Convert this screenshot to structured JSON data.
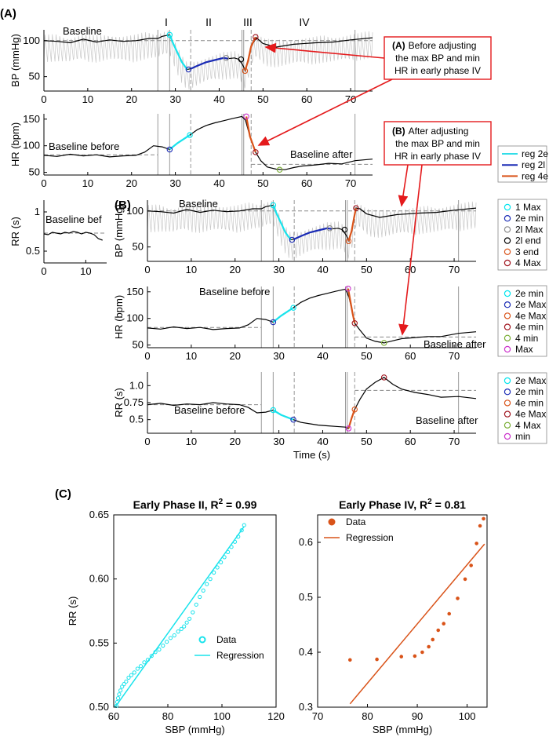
{
  "panel_labels": {
    "a": "(A)",
    "b": "(B)",
    "c": "(C)"
  },
  "phases": {
    "i": "I",
    "ii": "II",
    "iii": "III",
    "iv": "IV"
  },
  "callouts": {
    "a": {
      "key": "(A)",
      "l1": "Before adjusting",
      "l2": "the max BP and min",
      "l3": "HR in early phase IV"
    },
    "b": {
      "key": "(B)",
      "l1": "After adjusting",
      "l2": "the max BP and min",
      "l3": "HR in early phase IV"
    }
  },
  "legends": {
    "reg": [
      "reg 2e",
      "reg 2l",
      "reg 4e"
    ],
    "bp": [
      "1 Max",
      "2e min",
      "2l Max",
      "2l end",
      "3 end",
      "4 Max"
    ],
    "hr": [
      "2e min",
      "2e Max",
      "4e Max",
      "4e min",
      "4 min",
      "Max"
    ],
    "rr": [
      "2e Max",
      "2e min",
      "4e min",
      "4e Max",
      "4 Max",
      "min"
    ]
  },
  "legend_colors": {
    "reg": [
      "#33dde8",
      "#1a2bb5",
      "#d95319"
    ],
    "bp": [
      "#00e5ee",
      "#1a2bb5",
      "#8c8c8c",
      "#000000",
      "#d95319",
      "#a0141e"
    ],
    "hr": [
      "#00e5ee",
      "#1a2bb5",
      "#d95319",
      "#a0141e",
      "#77ac30",
      "#cc33cc"
    ],
    "rr": [
      "#00e5ee",
      "#1a2bb5",
      "#d95319",
      "#a0141e",
      "#77ac30",
      "#cc33cc"
    ]
  },
  "colors": {
    "cyan": "#19e3ec",
    "blue": "#1a2bb5",
    "orange": "#d95319",
    "gray_trace": "#c8c8c8"
  },
  "time_ticks": [
    "0",
    "10",
    "20",
    "30",
    "40",
    "50",
    "60",
    "70"
  ],
  "a_top": {
    "ylabel": "BP (mmHg)",
    "yticks": [
      "50",
      "100"
    ],
    "annotation": "Baseline"
  },
  "a_mid": {
    "ylabel": "HR (bpm)",
    "yticks": [
      "50",
      "100",
      "150"
    ],
    "annotation_left": "Baseline before",
    "annotation_right": "Baseline after"
  },
  "a_small": {
    "ylabel": "RR (s)",
    "yticks": [
      "0.5",
      "1"
    ],
    "xticks": [
      "0",
      "10"
    ],
    "annotation": "Baseline bef"
  },
  "b_top": {
    "ylabel": "BP (mmHg)",
    "yticks": [
      "50",
      "100"
    ],
    "annotation": "Baseline"
  },
  "b_mid": {
    "ylabel": "HR (bpm)",
    "yticks": [
      "50",
      "100",
      "150"
    ],
    "annotation_left": "Baseline before",
    "annotation_right": "Baseline after"
  },
  "b_bot": {
    "ylabel": "RR (s)",
    "yticks": [
      "0.5",
      "0.75",
      "1.0"
    ],
    "xlabel": "Time (s)",
    "annotation_left": "Baseline before",
    "annotation_right": "Baseline after"
  },
  "c_left": {
    "title_main": "Early Phase II, R",
    "title_sup": "2",
    "title_end": " = 0.99",
    "xlabel": "SBP (mmHg)",
    "ylabel": "RR (s)",
    "xticks": [
      "60",
      "80",
      "100",
      "120"
    ],
    "yticks": [
      "0.50",
      "0.55",
      "0.60",
      "0.65"
    ],
    "legend": [
      "Data",
      "Regression"
    ]
  },
  "c_right": {
    "title_main": "Early Phase IV, R",
    "title_sup": "2",
    "title_end": " = 0.81",
    "xlabel": "SBP (mmHg)",
    "xticks": [
      "70",
      "80",
      "90",
      "100"
    ],
    "yticks": [
      "0.3",
      "0.4",
      "0.5",
      "0.6"
    ],
    "legend": [
      "Data",
      "Regression"
    ]
  },
  "chart_data": [
    {
      "type": "line",
      "panel": "A-BP",
      "ylabel": "BP (mmHg)",
      "xlim": [
        0,
        75
      ],
      "ylim": [
        30,
        115
      ],
      "vlines_solid": [
        26,
        28.7,
        45.2,
        45.6,
        71
      ],
      "vlines_dashed": [
        33.5,
        47.3
      ],
      "baseline": 100,
      "x": [
        0,
        3,
        6,
        9,
        12,
        15,
        18,
        21,
        24,
        26,
        27,
        28.7,
        29.5,
        30.5,
        31.5,
        32.7,
        33.5,
        35,
        37,
        39,
        41,
        42,
        43.5,
        44.5,
        45.4,
        46,
        46.6,
        47.3,
        48.5,
        50,
        53,
        57,
        62,
        66,
        70,
        75
      ],
      "y": [
        100,
        99,
        97,
        102,
        98,
        101,
        99,
        100,
        103,
        103,
        106,
        108,
        96,
        83,
        70,
        60,
        61,
        65,
        70,
        73,
        76,
        75,
        76,
        74,
        66,
        58,
        72,
        92,
        104,
        96,
        91,
        95,
        97,
        98,
        101,
        104
      ],
      "segments": [
        {
          "name": "reg 2e",
          "x": [
            28.7,
            29.5,
            30.5,
            31.5,
            32.7
          ],
          "y": [
            108,
            96,
            83,
            70,
            60
          ]
        },
        {
          "name": "reg 2l",
          "x": [
            33.5,
            35,
            37,
            39,
            41,
            42
          ],
          "y": [
            61,
            65,
            70,
            73,
            76,
            75
          ]
        },
        {
          "name": "reg 4e",
          "x": [
            45.9,
            46.6,
            47.3,
            48.3
          ],
          "y": [
            58,
            72,
            92,
            105
          ]
        }
      ],
      "markers": [
        {
          "label": "1 Max",
          "x": 28.7,
          "y": 108
        },
        {
          "label": "2e min",
          "x": 33.0,
          "y": 60
        },
        {
          "label": "2l Max",
          "x": 41.6,
          "y": 76
        },
        {
          "label": "2l end",
          "x": 45.0,
          "y": 74
        },
        {
          "label": "3 end",
          "x": 45.9,
          "y": 58
        },
        {
          "label": "4 Max",
          "x": 48.3,
          "y": 105
        }
      ]
    },
    {
      "type": "line",
      "panel": "A-HR",
      "ylabel": "HR (bpm)",
      "xlim": [
        0,
        75
      ],
      "ylim": [
        45,
        160
      ],
      "vlines_solid": [
        26,
        28.7,
        45.2,
        45.6,
        71
      ],
      "vlines_dashed": [
        33.5,
        47.3
      ],
      "baseline_before": 83,
      "baseline_after": 65,
      "x": [
        0,
        3,
        6,
        9,
        12,
        15,
        18,
        21,
        23,
        25,
        27,
        28.7,
        30.5,
        33.3,
        35,
        37,
        39,
        41,
        43,
        45.2,
        46,
        47,
        48.3,
        49.5,
        51,
        53,
        55,
        57,
        59,
        62,
        65,
        68,
        71,
        75
      ],
      "y": [
        82,
        80,
        84,
        81,
        83,
        79,
        81,
        82,
        88,
        100,
        98,
        93,
        105,
        120,
        130,
        138,
        143,
        147,
        151,
        155,
        148,
        118,
        88,
        72,
        60,
        56,
        55,
        59,
        62,
        64,
        67,
        66,
        72,
        75
      ],
      "segments": [
        {
          "name": "reg 2e",
          "x": [
            28.7,
            30.5,
            33.3
          ],
          "y": [
            93,
            105,
            120
          ]
        },
        {
          "name": "reg 4e",
          "x": [
            46.2,
            47,
            48.3
          ],
          "y": [
            155,
            118,
            88
          ]
        }
      ],
      "markers": [
        {
          "label": "2e min",
          "x": 28.7,
          "y": 93
        },
        {
          "label": "2e Max",
          "x": 33.3,
          "y": 120
        },
        {
          "label": "Max",
          "x": 46.2,
          "y": 155
        },
        {
          "label": "4e min",
          "x": 48.3,
          "y": 88
        },
        {
          "label": "4 min",
          "x": 53.8,
          "y": 55
        }
      ]
    },
    {
      "type": "line",
      "panel": "A-RR",
      "ylabel": "RR (s)",
      "xlim": [
        0,
        15
      ],
      "ylim": [
        0.35,
        1.15
      ],
      "baseline": 0.73,
      "x": [
        0,
        1,
        2,
        3,
        4,
        5,
        6,
        7,
        8,
        9,
        10,
        11,
        12,
        13,
        14
      ],
      "y": [
        0.72,
        0.71,
        0.74,
        0.73,
        0.72,
        0.74,
        0.73,
        0.75,
        0.74,
        0.72,
        0.74,
        0.73,
        0.71,
        0.66,
        0.64
      ]
    },
    {
      "type": "line",
      "panel": "B-BP",
      "ylabel": "BP (mmHg)",
      "xlim": [
        0,
        75
      ],
      "ylim": [
        30,
        115
      ],
      "vlines_solid": [
        26,
        28.7,
        45.2,
        45.6,
        71
      ],
      "vlines_dashed": [
        33.5,
        47.3
      ],
      "baseline": 100,
      "x": [
        0,
        3,
        6,
        9,
        12,
        15,
        18,
        21,
        24,
        26,
        27,
        28.7,
        29.5,
        30.5,
        31.5,
        32.7,
        33.5,
        35,
        37,
        39,
        41,
        42,
        43.5,
        44.5,
        45.4,
        46,
        46.6,
        47.2,
        47.6,
        48.5,
        50,
        53,
        57,
        62,
        66,
        70,
        75
      ],
      "y": [
        100,
        99,
        97,
        102,
        98,
        101,
        99,
        100,
        103,
        103,
        106,
        108,
        96,
        83,
        70,
        60,
        61,
        65,
        70,
        73,
        76,
        75,
        76,
        74,
        66,
        58,
        72,
        92,
        104,
        103,
        96,
        91,
        95,
        97,
        98,
        101,
        104
      ],
      "segments": [
        {
          "name": "reg 2e",
          "x": [
            28.7,
            29.5,
            30.5,
            31.5,
            32.7
          ],
          "y": [
            108,
            96,
            83,
            70,
            60
          ]
        },
        {
          "name": "reg 2l",
          "x": [
            33.5,
            35,
            37,
            39,
            41,
            42
          ],
          "y": [
            61,
            65,
            70,
            73,
            76,
            75
          ]
        },
        {
          "name": "reg 4e",
          "x": [
            45.9,
            46.6,
            47.2,
            47.6
          ],
          "y": [
            58,
            72,
            92,
            104
          ]
        }
      ],
      "markers": [
        {
          "label": "1 Max",
          "x": 28.7,
          "y": 108
        },
        {
          "label": "2e min",
          "x": 33.0,
          "y": 60
        },
        {
          "label": "2l Max",
          "x": 41.6,
          "y": 76
        },
        {
          "label": "2l end",
          "x": 45.0,
          "y": 74
        },
        {
          "label": "3 end",
          "x": 45.9,
          "y": 58
        },
        {
          "label": "4 Max",
          "x": 47.6,
          "y": 104
        }
      ]
    },
    {
      "type": "line",
      "panel": "B-HR",
      "ylabel": "HR (bpm)",
      "xlim": [
        0,
        75
      ],
      "ylim": [
        45,
        160
      ],
      "vlines_solid": [
        26,
        28.7,
        45.2,
        45.6,
        71
      ],
      "vlines_dashed": [
        33.5,
        47.3
      ],
      "baseline_before": 83,
      "baseline_after": 65,
      "x": [
        0,
        3,
        6,
        9,
        12,
        15,
        18,
        21,
        23,
        25,
        27,
        28.7,
        30.5,
        33.3,
        35,
        37,
        39,
        41,
        43,
        45.2,
        46,
        46.8,
        47.3,
        48.5,
        50,
        52,
        54,
        56,
        58,
        61,
        64,
        67,
        71,
        75
      ],
      "y": [
        82,
        80,
        84,
        81,
        83,
        79,
        81,
        82,
        88,
        100,
        98,
        93,
        105,
        120,
        130,
        138,
        143,
        147,
        151,
        155,
        140,
        110,
        91,
        78,
        63,
        57,
        54,
        58,
        62,
        64,
        66,
        66,
        72,
        75
      ],
      "segments": [
        {
          "name": "reg 2e",
          "x": [
            28.7,
            30.5,
            33.3
          ],
          "y": [
            93,
            105,
            120
          ]
        },
        {
          "name": "reg 4e",
          "x": [
            45.8,
            46.8,
            47.3
          ],
          "y": [
            156,
            110,
            91
          ]
        }
      ],
      "markers": [
        {
          "label": "2e min",
          "x": 28.7,
          "y": 93
        },
        {
          "label": "2e Max",
          "x": 33.3,
          "y": 120
        },
        {
          "label": "Max",
          "x": 45.8,
          "y": 156
        },
        {
          "label": "4e min",
          "x": 47.3,
          "y": 91
        },
        {
          "label": "4 min",
          "x": 54,
          "y": 54
        }
      ]
    },
    {
      "type": "line",
      "panel": "B-RR",
      "ylabel": "RR (s)",
      "xlabel": "Time (s)",
      "xlim": [
        0,
        75
      ],
      "ylim": [
        0.3,
        1.2
      ],
      "vlines_solid": [
        26,
        28.7,
        45.2,
        45.6,
        71
      ],
      "vlines_dashed": [
        33.5,
        47.3
      ],
      "baseline_before": 0.72,
      "baseline_after": 0.93,
      "x": [
        0,
        3,
        6,
        9,
        12,
        15,
        18,
        21,
        23,
        25,
        27,
        28.7,
        30.5,
        33.3,
        35,
        37,
        39,
        41,
        43,
        45.2,
        45.9,
        46.6,
        47.3,
        48.5,
        50,
        52,
        54,
        56,
        58,
        61,
        64,
        67,
        71,
        75
      ],
      "y": [
        0.72,
        0.74,
        0.71,
        0.73,
        0.72,
        0.75,
        0.73,
        0.72,
        0.68,
        0.6,
        0.61,
        0.64,
        0.57,
        0.5,
        0.46,
        0.44,
        0.42,
        0.41,
        0.4,
        0.39,
        0.37,
        0.52,
        0.65,
        0.8,
        0.95,
        1.05,
        1.12,
        1.02,
        0.95,
        0.9,
        0.87,
        0.83,
        0.84,
        0.81
      ],
      "segments": [
        {
          "name": "reg 2e",
          "x": [
            28.7,
            30.5,
            33.3
          ],
          "y": [
            0.64,
            0.57,
            0.5
          ]
        },
        {
          "name": "reg 4e",
          "x": [
            45.9,
            46.6,
            47.3
          ],
          "y": [
            0.37,
            0.52,
            0.65
          ]
        }
      ],
      "markers": [
        {
          "label": "2e Max",
          "x": 28.7,
          "y": 0.64
        },
        {
          "label": "2e min",
          "x": 33.3,
          "y": 0.5
        },
        {
          "label": "min",
          "x": 45.9,
          "y": 0.37
        },
        {
          "label": "4e Max",
          "x": 47.3,
          "y": 0.65
        },
        {
          "label": "4 Max",
          "x": 54,
          "y": 1.12
        }
      ]
    },
    {
      "type": "scatter",
      "panel": "C-left",
      "title": "Early Phase II, R2 = 0.99",
      "xlabel": "SBP (mmHg)",
      "ylabel": "RR (s)",
      "xlim": [
        60,
        120
      ],
      "ylim": [
        0.5,
        0.65
      ],
      "series": [
        {
          "name": "Data",
          "x": [
            61.0,
            61.3,
            61.6,
            62.0,
            62.5,
            63.1,
            63.8,
            64.6,
            65.5,
            66.5,
            67.6,
            68.8,
            70.0,
            71.3,
            72.6,
            74.0,
            75.4,
            76.8,
            78.2,
            79.6,
            81.0,
            82.4,
            83.8,
            85.0,
            86.0,
            87.0,
            88.0,
            89.2,
            90.5,
            91.8,
            93.1,
            94.4,
            95.7,
            97.0,
            98.3,
            99.6,
            100.9,
            102.2,
            103.5,
            104.8,
            106.0,
            107.3,
            108.2
          ],
          "y": [
            0.501,
            0.504,
            0.507,
            0.51,
            0.513,
            0.516,
            0.518,
            0.52,
            0.523,
            0.525,
            0.527,
            0.53,
            0.532,
            0.535,
            0.537,
            0.54,
            0.543,
            0.545,
            0.548,
            0.551,
            0.554,
            0.556,
            0.559,
            0.561,
            0.563,
            0.566,
            0.569,
            0.574,
            0.58,
            0.586,
            0.591,
            0.596,
            0.6,
            0.605,
            0.609,
            0.613,
            0.617,
            0.621,
            0.625,
            0.629,
            0.633,
            0.638,
            0.642
          ]
        },
        {
          "name": "Regression",
          "x": [
            60.5,
            108.2
          ],
          "y": [
            0.5,
            0.641
          ]
        }
      ]
    },
    {
      "type": "scatter",
      "panel": "C-right",
      "title": "Early Phase IV, R2 = 0.81",
      "xlabel": "SBP (mmHg)",
      "xlim": [
        70,
        104
      ],
      "ylim": [
        0.3,
        0.65
      ],
      "series": [
        {
          "name": "Data",
          "x": [
            76.5,
            81.9,
            86.8,
            89.5,
            91.0,
            92.3,
            93.1,
            94.2,
            95.3,
            96.4,
            98.1,
            99.6,
            100.8,
            101.9,
            102.6,
            103.3
          ],
          "y": [
            0.386,
            0.387,
            0.392,
            0.393,
            0.4,
            0.41,
            0.423,
            0.44,
            0.452,
            0.47,
            0.498,
            0.533,
            0.558,
            0.598,
            0.63,
            0.643
          ]
        },
        {
          "name": "Regression",
          "x": [
            76.5,
            103.5
          ],
          "y": [
            0.306,
            0.597
          ]
        }
      ]
    }
  ]
}
